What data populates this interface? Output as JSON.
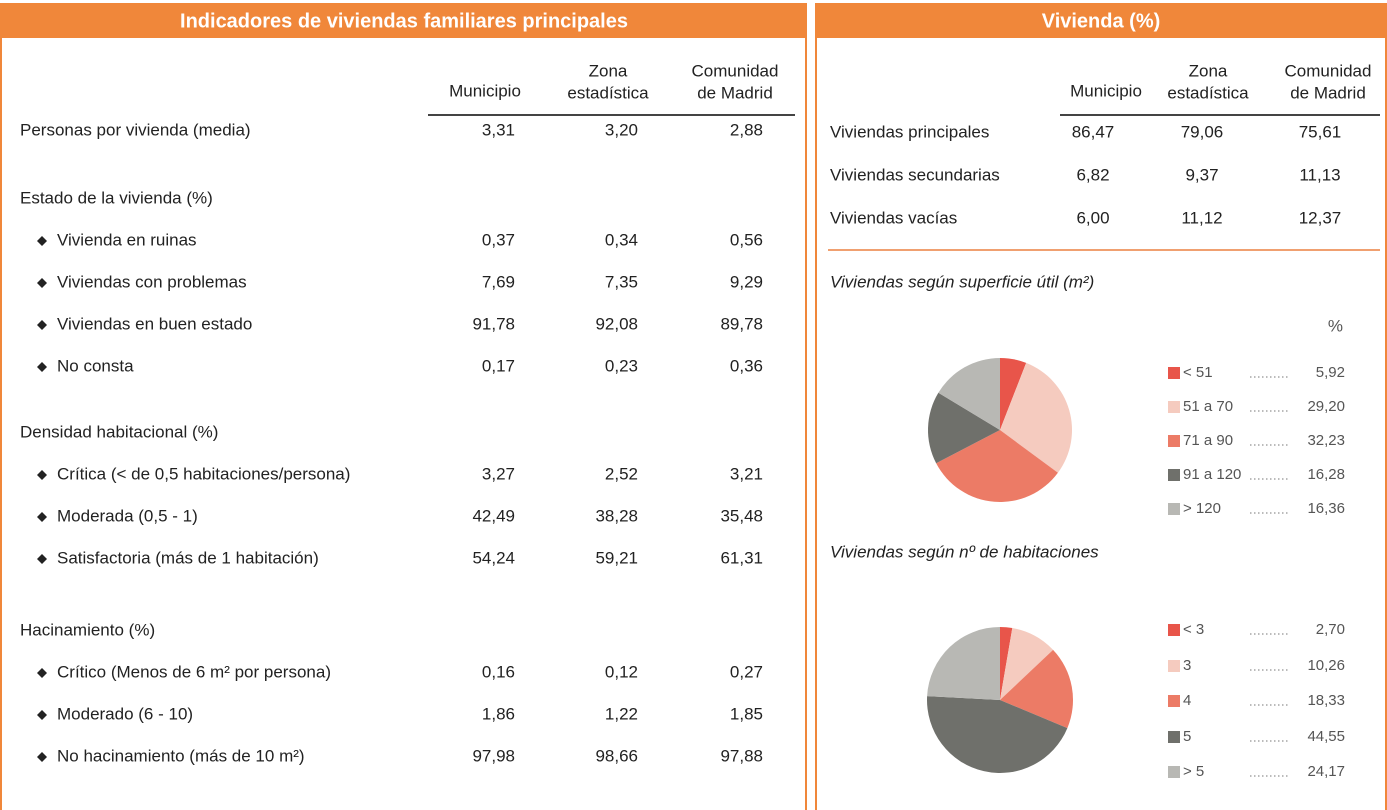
{
  "left_panel": {
    "title": "Indicadores de viviendas familiares principales",
    "columns": [
      [
        "Municipio"
      ],
      [
        "Zona",
        "estadística"
      ],
      [
        "Comunidad",
        "de Madrid"
      ]
    ],
    "groups": [
      {
        "rows": [
          {
            "label": "Personas por vivienda (media)",
            "values": [
              "3,31",
              "3,20",
              "2,88"
            ]
          }
        ]
      },
      {
        "heading": "Estado de la vivienda (%)",
        "rows": [
          {
            "label": "Vivienda en ruinas",
            "values": [
              "0,37",
              "0,34",
              "0,56"
            ]
          },
          {
            "label": "Viviendas con problemas",
            "values": [
              "7,69",
              "7,35",
              "9,29"
            ]
          },
          {
            "label": "Viviendas en buen estado",
            "values": [
              "91,78",
              "92,08",
              "89,78"
            ]
          },
          {
            "label": "No consta",
            "values": [
              "0,17",
              "0,23",
              "0,36"
            ]
          }
        ]
      },
      {
        "heading": "Densidad habitacional (%)",
        "rows": [
          {
            "label": "Crítica (< de 0,5 habitaciones/persona)",
            "values": [
              "3,27",
              "2,52",
              "3,21"
            ]
          },
          {
            "label": "Moderada (0,5 - 1)",
            "values": [
              "42,49",
              "38,28",
              "35,48"
            ]
          },
          {
            "label": "Satisfactoria (más de 1 habitación)",
            "values": [
              "54,24",
              "59,21",
              "61,31"
            ]
          }
        ]
      },
      {
        "heading": "Hacinamiento (%)",
        "rows": [
          {
            "label": "Crítico (Menos de 6 m² por persona)",
            "values": [
              "0,16",
              "0,12",
              "0,27"
            ]
          },
          {
            "label": "Moderado (6 - 10)",
            "values": [
              "1,86",
              "1,22",
              "1,85"
            ]
          },
          {
            "label": "No hacinamiento (más de 10 m²)",
            "values": [
              "97,98",
              "98,66",
              "97,88"
            ]
          }
        ]
      }
    ]
  },
  "right_panel": {
    "title": "Vivienda (%)",
    "columns": [
      [
        "Municipio"
      ],
      [
        "Zona",
        "estadística"
      ],
      [
        "Comunidad",
        "de Madrid"
      ]
    ],
    "rows": [
      {
        "label": "Viviendas principales",
        "values": [
          "86,47",
          "79,06",
          "75,61"
        ]
      },
      {
        "label": "Viviendas secundarias",
        "values": [
          "6,82",
          "9,37",
          "11,13"
        ]
      },
      {
        "label": "Viviendas vacías",
        "values": [
          "6,00",
          "11,12",
          "12,37"
        ]
      }
    ]
  },
  "chart_data": [
    {
      "type": "pie",
      "title": "Viviendas según superficie útil (m²)",
      "unit": "%",
      "categories": [
        "< 51",
        "51 a 70",
        "71 a 90",
        "91 a 120",
        "> 120"
      ],
      "values": [
        5.92,
        29.2,
        32.23,
        16.28,
        16.36
      ],
      "value_labels": [
        "5,92",
        "29,20",
        "32,23",
        "16,28",
        "16,36"
      ],
      "colors": [
        "#e8554a",
        "#f5cbbf",
        "#ec7b66",
        "#6f706b",
        "#b8b8b4"
      ]
    },
    {
      "type": "pie",
      "title": "Viviendas según  nº de habitaciones",
      "categories": [
        "< 3",
        "3",
        "4",
        "5",
        "> 5"
      ],
      "values": [
        2.7,
        10.26,
        18.33,
        44.55,
        24.17
      ],
      "value_labels": [
        "2,70",
        "10,26",
        "18,33",
        "44,55",
        "24,17"
      ],
      "colors": [
        "#e8554a",
        "#f5cbbf",
        "#ec7b66",
        "#6f706b",
        "#b8b8b4"
      ]
    }
  ]
}
